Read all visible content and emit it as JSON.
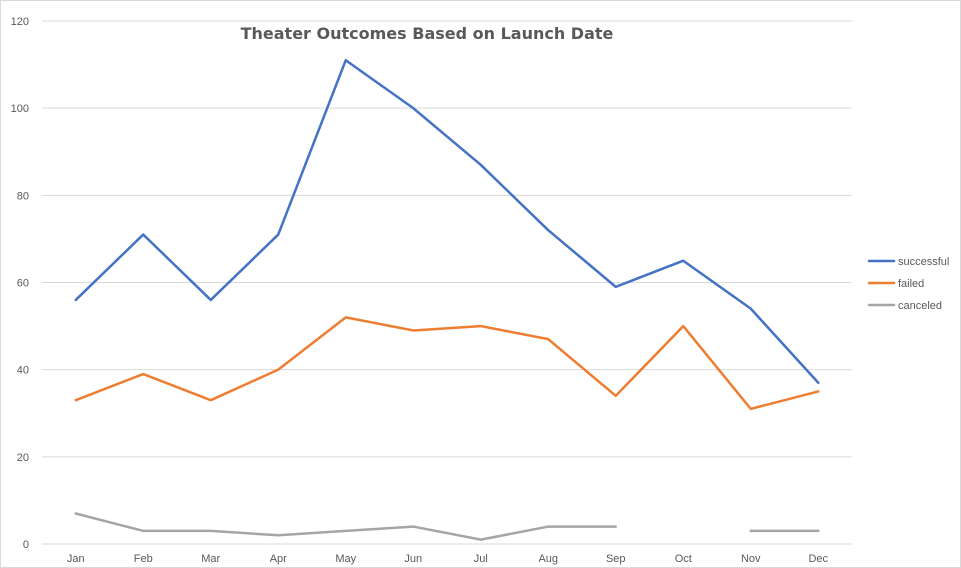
{
  "chart_data": {
    "type": "line",
    "title": "Theater Outcomes Based on Launch Date",
    "xlabel": "",
    "ylabel": "",
    "categories": [
      "Jan",
      "Feb",
      "Mar",
      "Apr",
      "May",
      "Jun",
      "Jul",
      "Aug",
      "Sep",
      "Oct",
      "Nov",
      "Dec"
    ],
    "ylim": [
      0,
      120
    ],
    "yticks": [
      0,
      20,
      40,
      60,
      80,
      100,
      120
    ],
    "grid": true,
    "legend_position": "right",
    "series": [
      {
        "name": "successful",
        "color": "#4472C4",
        "values": [
          56,
          71,
          56,
          71,
          111,
          100,
          87,
          72,
          59,
          65,
          54,
          37
        ]
      },
      {
        "name": "failed",
        "color": "#ED7D31",
        "values": [
          33,
          39,
          33,
          40,
          52,
          49,
          50,
          47,
          34,
          50,
          31,
          35
        ]
      },
      {
        "name": "canceled",
        "color": "#A5A5A5",
        "values": [
          7,
          3,
          3,
          2,
          3,
          4,
          1,
          4,
          4,
          null,
          3,
          3
        ]
      }
    ]
  }
}
